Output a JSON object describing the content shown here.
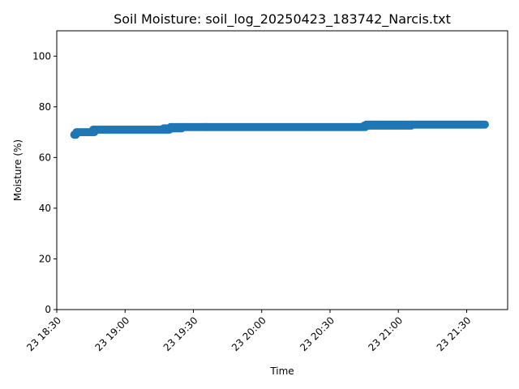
{
  "chart_data": {
    "type": "scatter",
    "title": "Soil Moisture: soil_log_20250423_183742_Narcis.txt",
    "xlabel": "Time",
    "ylabel": "Moisture (%)",
    "xlim": [
      "2025-04-23 18:30",
      "2025-04-23 21:48"
    ],
    "ylim": [
      0,
      110
    ],
    "x_ticks": [
      {
        "value": "2025-04-23 18:30",
        "label": "23 18:30"
      },
      {
        "value": "2025-04-23 19:00",
        "label": "23 19:00"
      },
      {
        "value": "2025-04-23 19:30",
        "label": "23 19:30"
      },
      {
        "value": "2025-04-23 20:00",
        "label": "23 20:00"
      },
      {
        "value": "2025-04-23 20:30",
        "label": "23 20:30"
      },
      {
        "value": "2025-04-23 21:00",
        "label": "23 21:00"
      },
      {
        "value": "2025-04-23 21:30",
        "label": "23 21:30"
      }
    ],
    "y_ticks": [
      0,
      20,
      40,
      60,
      80,
      100
    ],
    "grid": false,
    "color": "#1f77b4",
    "series": [
      {
        "segments": [
          {
            "x_start": "2025-04-23 18:37:42",
            "x_end": "2025-04-23 18:38:40",
            "value": 69
          },
          {
            "x_start": "2025-04-23 18:38:40",
            "x_end": "2025-04-23 18:47:00",
            "value": 70
          },
          {
            "x_start": "2025-04-23 18:46:00",
            "x_end": "2025-04-23 19:20:00",
            "value": 71
          },
          {
            "x_start": "2025-04-23 19:17:00",
            "x_end": "2025-04-23 19:25:00",
            "value": 71.5
          },
          {
            "x_start": "2025-04-23 19:20:00",
            "x_end": "2025-04-23 20:46:00",
            "value": 72
          },
          {
            "x_start": "2025-04-23 20:45:00",
            "x_end": "2025-04-23 21:06:00",
            "value": 72.6
          },
          {
            "x_start": "2025-04-23 20:46:00",
            "x_end": "2025-04-23 21:38:30",
            "value": 73
          }
        ]
      }
    ]
  }
}
